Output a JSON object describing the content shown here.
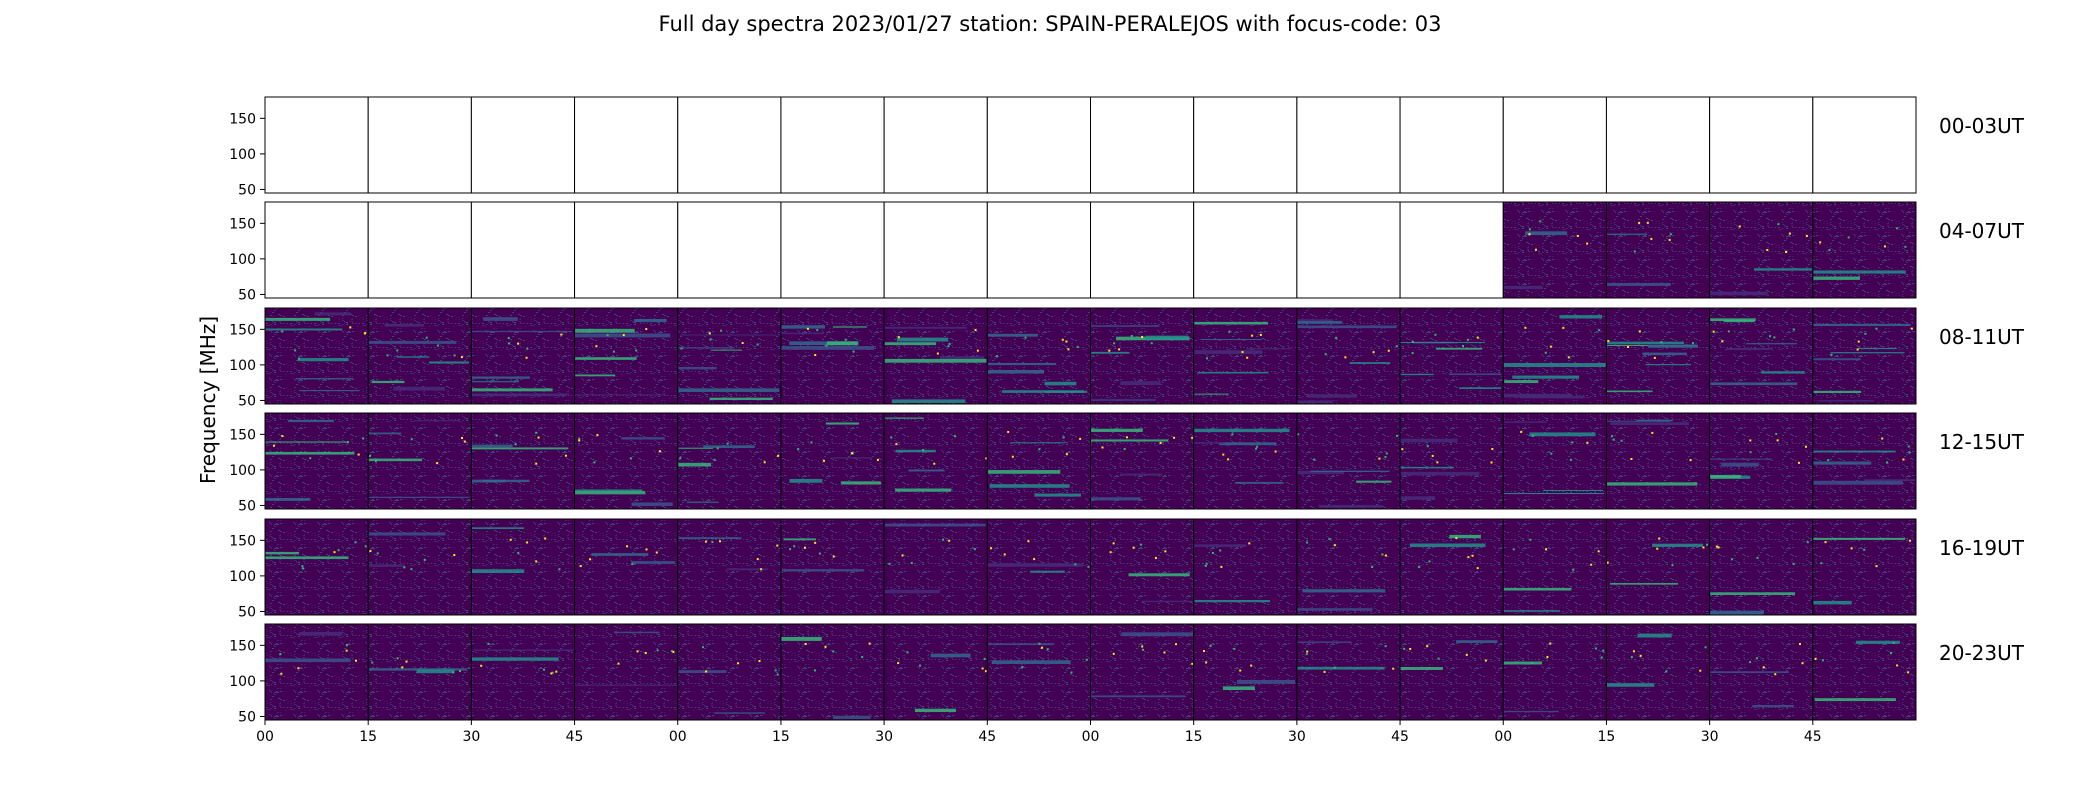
{
  "chart_data": {
    "type": "heatmap",
    "title": "Full day spectra 2023/01/27 station: SPAIN-PERALEJOS with focus-code: 03",
    "ylabel": "Frequency [MHz]",
    "xlabel": "",
    "ylim": [
      45,
      180
    ],
    "yticks": [
      50,
      100,
      150
    ],
    "xticks": [
      "00",
      "15",
      "30",
      "45",
      "00",
      "15",
      "30",
      "45",
      "00",
      "15",
      "30",
      "45",
      "00",
      "15",
      "30",
      "45"
    ],
    "panels_per_row": 16,
    "panel_minutes": 15,
    "colormap": "viridis",
    "colors": {
      "background": "#440154",
      "low": "#472c7a",
      "mid": "#31688e",
      "high": "#35b779",
      "peak": "#fde725"
    },
    "rows": [
      {
        "label": "00-03UT",
        "available": [
          0,
          0,
          0,
          0,
          0,
          0,
          0,
          0,
          0,
          0,
          0,
          0,
          0,
          0,
          0,
          0
        ]
      },
      {
        "label": "04-07UT",
        "available": [
          0,
          0,
          0,
          0,
          0,
          0,
          0,
          0,
          0,
          0,
          0,
          0,
          1,
          1,
          1,
          1
        ]
      },
      {
        "label": "08-11UT",
        "available": [
          1,
          1,
          1,
          1,
          1,
          1,
          1,
          1,
          1,
          1,
          1,
          1,
          1,
          1,
          1,
          1
        ]
      },
      {
        "label": "12-15UT",
        "available": [
          1,
          1,
          1,
          1,
          1,
          1,
          1,
          1,
          1,
          1,
          1,
          1,
          1,
          1,
          1,
          1
        ]
      },
      {
        "label": "16-19UT",
        "available": [
          1,
          1,
          1,
          1,
          1,
          1,
          1,
          1,
          1,
          1,
          1,
          1,
          1,
          1,
          1,
          1
        ]
      },
      {
        "label": "20-23UT",
        "available": [
          1,
          1,
          1,
          1,
          1,
          1,
          1,
          1,
          1,
          1,
          1,
          1,
          1,
          1,
          1,
          1
        ]
      }
    ]
  }
}
